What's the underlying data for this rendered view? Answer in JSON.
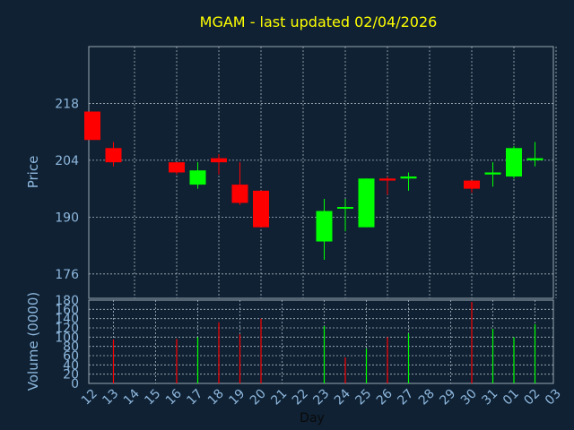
{
  "chart_data": [
    {
      "type": "candlestick",
      "title": "MGAM - last updated 02/04/2026",
      "ylabel": "Price",
      "ylim": [
        170,
        232
      ],
      "yticks": [
        176,
        190,
        204,
        218
      ],
      "grid": true,
      "colors": {
        "up": "#00ff00",
        "down": "#ff0000",
        "background": "#0f2133",
        "title": "#ffff00",
        "axis_text": "#8fb8de"
      },
      "candles": [
        {
          "day": "12",
          "open": 216.0,
          "high": 216.0,
          "low": 209.0,
          "close": 209.0
        },
        {
          "day": "13",
          "open": 207.0,
          "high": 208.5,
          "low": 202.5,
          "close": 203.5
        },
        {
          "day": "16",
          "open": 203.5,
          "high": 203.5,
          "low": 200.5,
          "close": 201.0
        },
        {
          "day": "17",
          "open": 198.0,
          "high": 203.5,
          "low": 197.0,
          "close": 201.5
        },
        {
          "day": "18",
          "open": 204.5,
          "high": 205.5,
          "low": 200.5,
          "close": 203.5
        },
        {
          "day": "19",
          "open": 198.0,
          "high": 203.5,
          "low": 193.0,
          "close": 193.5
        },
        {
          "day": "20",
          "open": 196.5,
          "high": 196.5,
          "low": 187.5,
          "close": 187.5
        },
        {
          "day": "23",
          "open": 184.0,
          "high": 194.5,
          "low": 179.5,
          "close": 191.5
        },
        {
          "day": "24",
          "open": 192.5,
          "high": 194.5,
          "low": 186.5,
          "close": 192.5
        },
        {
          "day": "25",
          "open": 187.5,
          "high": 199.5,
          "low": 187.5,
          "close": 199.5
        },
        {
          "day": "26",
          "open": 199.5,
          "high": 200.0,
          "low": 195.5,
          "close": 199.0
        },
        {
          "day": "27",
          "open": 199.5,
          "high": 201.0,
          "low": 196.5,
          "close": 200.0
        },
        {
          "day": "30",
          "open": 199.0,
          "high": 199.0,
          "low": 196.0,
          "close": 197.0
        },
        {
          "day": "31",
          "open": 200.5,
          "high": 203.5,
          "low": 197.5,
          "close": 201.0
        },
        {
          "day": "01",
          "open": 200.0,
          "high": 207.5,
          "low": 199.5,
          "close": 207.0
        },
        {
          "day": "02",
          "open": 204.0,
          "high": 208.5,
          "low": 202.5,
          "close": 204.5
        }
      ]
    },
    {
      "type": "bar",
      "ylabel": "Volume (0000)",
      "ylim": [
        0,
        180
      ],
      "yticks": [
        0,
        20,
        40,
        60,
        80,
        100,
        120,
        140,
        160,
        180
      ],
      "grid": true,
      "bars": [
        {
          "day": "13",
          "value": 95,
          "direction": "down"
        },
        {
          "day": "16",
          "value": 96,
          "direction": "down"
        },
        {
          "day": "17",
          "value": 100,
          "direction": "up"
        },
        {
          "day": "18",
          "value": 132,
          "direction": "down"
        },
        {
          "day": "19",
          "value": 106,
          "direction": "down"
        },
        {
          "day": "20",
          "value": 140,
          "direction": "down"
        },
        {
          "day": "23",
          "value": 124,
          "direction": "up"
        },
        {
          "day": "24",
          "value": 56,
          "direction": "down"
        },
        {
          "day": "25",
          "value": 75,
          "direction": "up"
        },
        {
          "day": "26",
          "value": 100,
          "direction": "down"
        },
        {
          "day": "27",
          "value": 108,
          "direction": "up"
        },
        {
          "day": "30",
          "value": 176,
          "direction": "down"
        },
        {
          "day": "31",
          "value": 118,
          "direction": "up"
        },
        {
          "day": "01",
          "value": 100,
          "direction": "up"
        },
        {
          "day": "02",
          "value": 128,
          "direction": "up"
        }
      ]
    }
  ],
  "x_axis": {
    "label": "Day",
    "ticks": [
      "12",
      "13",
      "14",
      "15",
      "16",
      "17",
      "18",
      "19",
      "20",
      "21",
      "22",
      "23",
      "24",
      "25",
      "26",
      "27",
      "28",
      "29",
      "30",
      "31",
      "01",
      "02",
      "03"
    ]
  }
}
